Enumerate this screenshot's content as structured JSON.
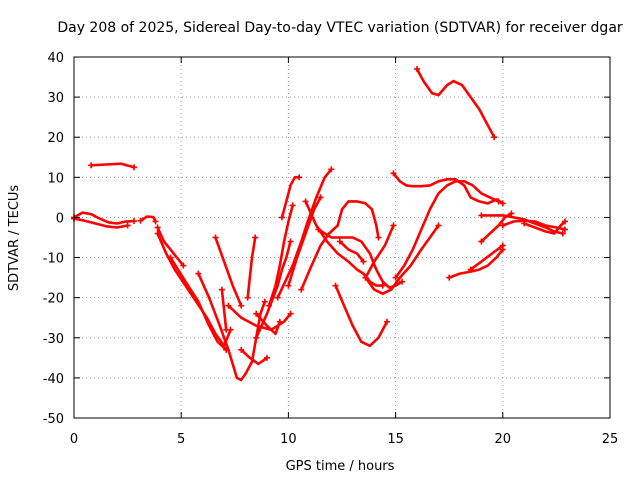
{
  "chart_data": {
    "type": "scatter",
    "title": "Day 208 of 2025, Sidereal Day-to-day VTEC variation (SDTVAR) for receiver dgar",
    "xlabel": "GPS time / hours",
    "ylabel": "SDTVAR / TECUs",
    "xlim": [
      0,
      25
    ],
    "ylim": [
      -50,
      40
    ],
    "xticks": [
      0,
      5,
      10,
      15,
      20,
      25
    ],
    "yticks": [
      -50,
      -40,
      -30,
      -20,
      -10,
      0,
      10,
      20,
      30,
      40
    ],
    "grid": true,
    "marker_color": "#ff0000",
    "tracks": [
      [
        [
          0,
          0
        ],
        [
          0.4,
          1.2
        ],
        [
          0.8,
          0.8
        ],
        [
          1.2,
          -0.3
        ],
        [
          1.6,
          -1.2
        ],
        [
          2.0,
          -1.5
        ],
        [
          2.4,
          -1.0
        ],
        [
          2.8,
          -0.9
        ]
      ],
      [
        [
          0,
          -0.3
        ],
        [
          0.5,
          -0.8
        ],
        [
          1.0,
          -1.5
        ],
        [
          1.5,
          -2.2
        ],
        [
          2.0,
          -2.5
        ],
        [
          2.5,
          -2.0
        ]
      ],
      [
        [
          0.8,
          13
        ],
        [
          1.5,
          13.2
        ],
        [
          2.2,
          13.4
        ],
        [
          2.8,
          12.5
        ]
      ],
      [
        [
          3.1,
          -0.8
        ],
        [
          3.4,
          0.2
        ],
        [
          3.7,
          0.1
        ],
        [
          3.8,
          -1
        ]
      ],
      [
        [
          3.9,
          -2.5
        ],
        [
          4.2,
          -6
        ],
        [
          4.5,
          -8
        ],
        [
          4.8,
          -10
        ],
        [
          5.1,
          -12
        ]
      ],
      [
        [
          3.9,
          -4
        ],
        [
          4.3,
          -9
        ],
        [
          4.7,
          -13
        ],
        [
          5.2,
          -17
        ],
        [
          5.7,
          -21
        ],
        [
          6.2,
          -25
        ],
        [
          6.6,
          -29
        ],
        [
          7.0,
          -32
        ],
        [
          7.3,
          -28
        ]
      ],
      [
        [
          4.5,
          -10
        ],
        [
          5.2,
          -16
        ],
        [
          5.8,
          -21
        ],
        [
          6.3,
          -27
        ],
        [
          6.7,
          -31
        ],
        [
          7.1,
          -33
        ]
      ],
      [
        [
          5.8,
          -14
        ],
        [
          6.3,
          -20
        ],
        [
          6.8,
          -27
        ],
        [
          7.2,
          -33
        ],
        [
          7.6,
          -40
        ],
        [
          7.8,
          -40.5
        ],
        [
          8.0,
          -39
        ],
        [
          8.3,
          -36
        ],
        [
          8.5,
          -30
        ],
        [
          8.7,
          -24
        ],
        [
          8.9,
          -21
        ]
      ],
      [
        [
          6.6,
          -5
        ],
        [
          7.0,
          -11
        ],
        [
          7.4,
          -17
        ],
        [
          7.8,
          -22
        ]
      ],
      [
        [
          6.9,
          -18
        ],
        [
          7.1,
          -28
        ]
      ],
      [
        [
          8.1,
          -20
        ],
        [
          8.2,
          -15
        ],
        [
          8.3,
          -10
        ],
        [
          8.45,
          -5
        ]
      ],
      [
        [
          7.8,
          -33
        ],
        [
          8.2,
          -35
        ],
        [
          8.6,
          -36.5
        ],
        [
          9.0,
          -35
        ]
      ],
      [
        [
          7.2,
          -22
        ],
        [
          7.8,
          -25
        ],
        [
          8.5,
          -27
        ],
        [
          9.2,
          -28
        ],
        [
          9.8,
          -26
        ],
        [
          10.1,
          -24
        ]
      ],
      [
        [
          8.5,
          -24
        ],
        [
          9.0,
          -27
        ],
        [
          9.4,
          -29
        ],
        [
          9.6,
          -26
        ]
      ],
      [
        [
          8.5,
          -30
        ],
        [
          9.0,
          -24
        ],
        [
          9.5,
          -17
        ],
        [
          9.7,
          -13
        ],
        [
          9.9,
          -10
        ],
        [
          10.1,
          -6
        ]
      ],
      [
        [
          9.1,
          -22
        ],
        [
          9.4,
          -17
        ],
        [
          9.6,
          -12
        ],
        [
          9.8,
          -6
        ],
        [
          10.0,
          -1
        ],
        [
          10.2,
          3
        ]
      ],
      [
        [
          9.7,
          0
        ],
        [
          9.9,
          4
        ],
        [
          10.1,
          8
        ],
        [
          10.3,
          10
        ],
        [
          10.5,
          10
        ]
      ],
      [
        [
          10.0,
          -17
        ],
        [
          10.4,
          -10
        ],
        [
          10.8,
          -4
        ],
        [
          11.2,
          2
        ],
        [
          11.5,
          5
        ]
      ],
      [
        [
          9.5,
          -20
        ],
        [
          10.2,
          -12
        ],
        [
          10.6,
          -6
        ],
        [
          10.9,
          -1
        ],
        [
          11.3,
          5
        ],
        [
          11.7,
          10
        ],
        [
          12.0,
          12
        ]
      ],
      [
        [
          10.6,
          -18
        ],
        [
          11.0,
          -13
        ],
        [
          11.5,
          -7
        ],
        [
          11.9,
          -4
        ],
        [
          12.3,
          -2
        ],
        [
          12.5,
          2
        ],
        [
          12.8,
          4
        ],
        [
          13.2,
          4
        ],
        [
          13.6,
          3.5
        ],
        [
          13.9,
          2
        ],
        [
          14.1,
          -2
        ],
        [
          14.2,
          -5
        ]
      ],
      [
        [
          10.8,
          4
        ],
        [
          11.3,
          -2
        ],
        [
          11.8,
          -6
        ],
        [
          12.3,
          -9
        ],
        [
          12.8,
          -11
        ],
        [
          13.2,
          -13
        ],
        [
          13.5,
          -14
        ],
        [
          13.8,
          -16
        ],
        [
          14.1,
          -17
        ],
        [
          14.4,
          -17
        ]
      ],
      [
        [
          11.4,
          -3
        ],
        [
          12.0,
          -5
        ],
        [
          12.5,
          -5
        ],
        [
          13.0,
          -5
        ],
        [
          13.4,
          -6
        ],
        [
          13.8,
          -9
        ],
        [
          14.1,
          -13
        ],
        [
          14.4,
          -16
        ],
        [
          14.7,
          -17.5
        ],
        [
          15.0,
          -17
        ],
        [
          15.3,
          -16
        ]
      ],
      [
        [
          12.4,
          -6
        ],
        [
          12.8,
          -8
        ],
        [
          13.2,
          -9
        ],
        [
          13.5,
          -11
        ]
      ],
      [
        [
          12.2,
          -17
        ],
        [
          12.6,
          -22
        ],
        [
          13.0,
          -27
        ],
        [
          13.4,
          -31
        ],
        [
          13.8,
          -32
        ],
        [
          14.2,
          -30
        ],
        [
          14.6,
          -26
        ]
      ],
      [
        [
          13.6,
          -15
        ],
        [
          14.0,
          -11
        ],
        [
          14.5,
          -7
        ],
        [
          14.9,
          -2
        ]
      ],
      [
        [
          13.6,
          -15
        ],
        [
          14.0,
          -18
        ],
        [
          14.4,
          -19
        ],
        [
          14.8,
          -18
        ],
        [
          15.2,
          -15
        ],
        [
          15.7,
          -12
        ],
        [
          16.2,
          -8
        ],
        [
          16.6,
          -5
        ],
        [
          17.0,
          -2
        ]
      ],
      [
        [
          15.0,
          -15
        ],
        [
          15.4,
          -12
        ],
        [
          15.8,
          -8
        ],
        [
          16.2,
          -3
        ],
        [
          16.6,
          2
        ],
        [
          17.0,
          6
        ],
        [
          17.4,
          8
        ],
        [
          17.8,
          9
        ],
        [
          18.2,
          9
        ],
        [
          18.6,
          8
        ],
        [
          19.0,
          6
        ],
        [
          19.4,
          5
        ],
        [
          19.8,
          4
        ]
      ],
      [
        [
          14.9,
          11
        ],
        [
          15.2,
          9
        ],
        [
          15.5,
          8
        ],
        [
          15.8,
          7.8
        ],
        [
          16.2,
          7.8
        ],
        [
          16.6,
          8
        ],
        [
          17.0,
          9
        ],
        [
          17.4,
          9.5
        ],
        [
          17.8,
          9.5
        ],
        [
          18.2,
          8
        ],
        [
          18.5,
          5
        ],
        [
          18.9,
          4
        ],
        [
          19.3,
          3.5
        ],
        [
          19.7,
          4.5
        ],
        [
          20.0,
          3.5
        ]
      ],
      [
        [
          16.0,
          37
        ],
        [
          16.3,
          34
        ],
        [
          16.7,
          31
        ],
        [
          17.0,
          30.5
        ],
        [
          17.4,
          33
        ],
        [
          17.7,
          34
        ],
        [
          18.1,
          33
        ],
        [
          18.5,
          30
        ],
        [
          18.9,
          27
        ],
        [
          19.3,
          23
        ],
        [
          19.6,
          20
        ]
      ],
      [
        [
          17.5,
          -15
        ],
        [
          18.0,
          -14
        ],
        [
          18.5,
          -13.5
        ],
        [
          18.9,
          -13
        ],
        [
          19.3,
          -12
        ],
        [
          19.7,
          -10
        ],
        [
          20.0,
          -8
        ]
      ],
      [
        [
          18.5,
          -13
        ],
        [
          19.0,
          -11
        ],
        [
          19.5,
          -9
        ],
        [
          20.0,
          -7
        ]
      ],
      [
        [
          19.0,
          -6
        ],
        [
          19.4,
          -4
        ],
        [
          19.8,
          -2
        ],
        [
          20.1,
          0
        ],
        [
          20.4,
          1
        ]
      ],
      [
        [
          19.0,
          0.5
        ],
        [
          19.5,
          0.5
        ],
        [
          20.0,
          0.5
        ],
        [
          20.5,
          0
        ],
        [
          21.0,
          -0.5
        ],
        [
          21.5,
          -1.5
        ],
        [
          22.0,
          -2.5
        ],
        [
          22.4,
          -3.5
        ],
        [
          22.8,
          -4
        ]
      ],
      [
        [
          20.0,
          -2
        ],
        [
          20.5,
          -1
        ],
        [
          21.0,
          -0.8
        ],
        [
          21.5,
          -1
        ],
        [
          22.0,
          -2
        ],
        [
          22.5,
          -2.5
        ],
        [
          22.9,
          -3
        ]
      ],
      [
        [
          21.0,
          -1.5
        ],
        [
          21.5,
          -2.5
        ],
        [
          22.0,
          -3.5
        ],
        [
          22.4,
          -4
        ],
        [
          22.7,
          -2
        ],
        [
          22.9,
          -1
        ]
      ]
    ]
  }
}
